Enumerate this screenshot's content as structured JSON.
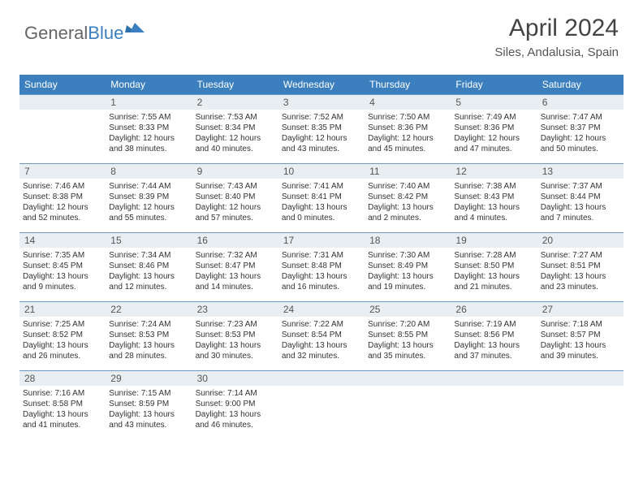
{
  "brand": {
    "part1": "General",
    "part2": "Blue"
  },
  "title": "April 2024",
  "location": "Siles, Andalusia, Spain",
  "colors": {
    "header_blue": "#3b7fbf",
    "daynum_bg": "#e9eef2",
    "row_border": "#6a99c5",
    "text_dark": "#333333",
    "text_mid": "#555555"
  },
  "day_headers": [
    "Sunday",
    "Monday",
    "Tuesday",
    "Wednesday",
    "Thursday",
    "Friday",
    "Saturday"
  ],
  "weeks": [
    [
      {
        "blank": true
      },
      {
        "num": "1",
        "sr": "7:55 AM",
        "ss": "8:33 PM",
        "dl": "12 hours and 38 minutes."
      },
      {
        "num": "2",
        "sr": "7:53 AM",
        "ss": "8:34 PM",
        "dl": "12 hours and 40 minutes."
      },
      {
        "num": "3",
        "sr": "7:52 AM",
        "ss": "8:35 PM",
        "dl": "12 hours and 43 minutes."
      },
      {
        "num": "4",
        "sr": "7:50 AM",
        "ss": "8:36 PM",
        "dl": "12 hours and 45 minutes."
      },
      {
        "num": "5",
        "sr": "7:49 AM",
        "ss": "8:36 PM",
        "dl": "12 hours and 47 minutes."
      },
      {
        "num": "6",
        "sr": "7:47 AM",
        "ss": "8:37 PM",
        "dl": "12 hours and 50 minutes."
      }
    ],
    [
      {
        "num": "7",
        "sr": "7:46 AM",
        "ss": "8:38 PM",
        "dl": "12 hours and 52 minutes."
      },
      {
        "num": "8",
        "sr": "7:44 AM",
        "ss": "8:39 PM",
        "dl": "12 hours and 55 minutes."
      },
      {
        "num": "9",
        "sr": "7:43 AM",
        "ss": "8:40 PM",
        "dl": "12 hours and 57 minutes."
      },
      {
        "num": "10",
        "sr": "7:41 AM",
        "ss": "8:41 PM",
        "dl": "13 hours and 0 minutes."
      },
      {
        "num": "11",
        "sr": "7:40 AM",
        "ss": "8:42 PM",
        "dl": "13 hours and 2 minutes."
      },
      {
        "num": "12",
        "sr": "7:38 AM",
        "ss": "8:43 PM",
        "dl": "13 hours and 4 minutes."
      },
      {
        "num": "13",
        "sr": "7:37 AM",
        "ss": "8:44 PM",
        "dl": "13 hours and 7 minutes."
      }
    ],
    [
      {
        "num": "14",
        "sr": "7:35 AM",
        "ss": "8:45 PM",
        "dl": "13 hours and 9 minutes."
      },
      {
        "num": "15",
        "sr": "7:34 AM",
        "ss": "8:46 PM",
        "dl": "13 hours and 12 minutes."
      },
      {
        "num": "16",
        "sr": "7:32 AM",
        "ss": "8:47 PM",
        "dl": "13 hours and 14 minutes."
      },
      {
        "num": "17",
        "sr": "7:31 AM",
        "ss": "8:48 PM",
        "dl": "13 hours and 16 minutes."
      },
      {
        "num": "18",
        "sr": "7:30 AM",
        "ss": "8:49 PM",
        "dl": "13 hours and 19 minutes."
      },
      {
        "num": "19",
        "sr": "7:28 AM",
        "ss": "8:50 PM",
        "dl": "13 hours and 21 minutes."
      },
      {
        "num": "20",
        "sr": "7:27 AM",
        "ss": "8:51 PM",
        "dl": "13 hours and 23 minutes."
      }
    ],
    [
      {
        "num": "21",
        "sr": "7:25 AM",
        "ss": "8:52 PM",
        "dl": "13 hours and 26 minutes."
      },
      {
        "num": "22",
        "sr": "7:24 AM",
        "ss": "8:53 PM",
        "dl": "13 hours and 28 minutes."
      },
      {
        "num": "23",
        "sr": "7:23 AM",
        "ss": "8:53 PM",
        "dl": "13 hours and 30 minutes."
      },
      {
        "num": "24",
        "sr": "7:22 AM",
        "ss": "8:54 PM",
        "dl": "13 hours and 32 minutes."
      },
      {
        "num": "25",
        "sr": "7:20 AM",
        "ss": "8:55 PM",
        "dl": "13 hours and 35 minutes."
      },
      {
        "num": "26",
        "sr": "7:19 AM",
        "ss": "8:56 PM",
        "dl": "13 hours and 37 minutes."
      },
      {
        "num": "27",
        "sr": "7:18 AM",
        "ss": "8:57 PM",
        "dl": "13 hours and 39 minutes."
      }
    ],
    [
      {
        "num": "28",
        "sr": "7:16 AM",
        "ss": "8:58 PM",
        "dl": "13 hours and 41 minutes."
      },
      {
        "num": "29",
        "sr": "7:15 AM",
        "ss": "8:59 PM",
        "dl": "13 hours and 43 minutes."
      },
      {
        "num": "30",
        "sr": "7:14 AM",
        "ss": "9:00 PM",
        "dl": "13 hours and 46 minutes."
      },
      {
        "blank": true
      },
      {
        "blank": true
      },
      {
        "blank": true
      },
      {
        "blank": true
      }
    ]
  ],
  "labels": {
    "sunrise": "Sunrise:",
    "sunset": "Sunset:",
    "daylight": "Daylight:"
  }
}
